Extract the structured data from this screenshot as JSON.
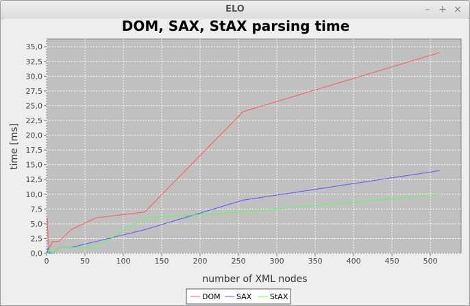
{
  "window": {
    "title": "ELO",
    "controls": {
      "minimize": "–",
      "maximize": "+",
      "close": "×"
    }
  },
  "chart_data": {
    "type": "line",
    "title": "DOM, SAX, StAX parsing time",
    "xlabel": "number of XML nodes",
    "ylabel": "time [ms]",
    "xlim": [
      0,
      540
    ],
    "ylim": [
      0,
      36.3
    ],
    "xticks": [
      0,
      50,
      100,
      150,
      200,
      250,
      300,
      350,
      400,
      450,
      500
    ],
    "xtick_labels": [
      "0",
      "50",
      "100",
      "150",
      "200",
      "250",
      "300",
      "350",
      "400",
      "450",
      "500"
    ],
    "yticks": [
      0,
      2.5,
      5,
      7.5,
      10,
      12.5,
      15,
      17.5,
      20,
      22.5,
      25,
      27.5,
      30,
      32.5,
      35
    ],
    "ytick_labels": [
      "0,0",
      "2,5",
      "5,0",
      "7,5",
      "10,0",
      "12,5",
      "15,0",
      "17,5",
      "20,0",
      "22,5",
      "25,0",
      "27,5",
      "30,0",
      "32,5",
      "35,0"
    ],
    "grid": true,
    "legend_position": "bottom",
    "plot_background": "#c0c0c0",
    "series": [
      {
        "name": "DOM",
        "color": "#ff5555",
        "x": [
          1,
          2,
          4,
          8,
          16,
          32,
          64,
          128,
          256,
          512
        ],
        "y": [
          6,
          2,
          1,
          2,
          2,
          4,
          6,
          7,
          24,
          34
        ]
      },
      {
        "name": "SAX",
        "color": "#5555ff",
        "x": [
          1,
          2,
          4,
          8,
          16,
          32,
          64,
          128,
          256,
          512
        ],
        "y": [
          0,
          1,
          0,
          0,
          1,
          1,
          2,
          4,
          9,
          14
        ]
      },
      {
        "name": "StAX",
        "color": "#55ff55",
        "x": [
          1,
          2,
          4,
          8,
          16,
          32,
          64,
          128,
          256,
          512
        ],
        "y": [
          0,
          0,
          1,
          0,
          1,
          1,
          1,
          6,
          7,
          10
        ]
      }
    ]
  }
}
